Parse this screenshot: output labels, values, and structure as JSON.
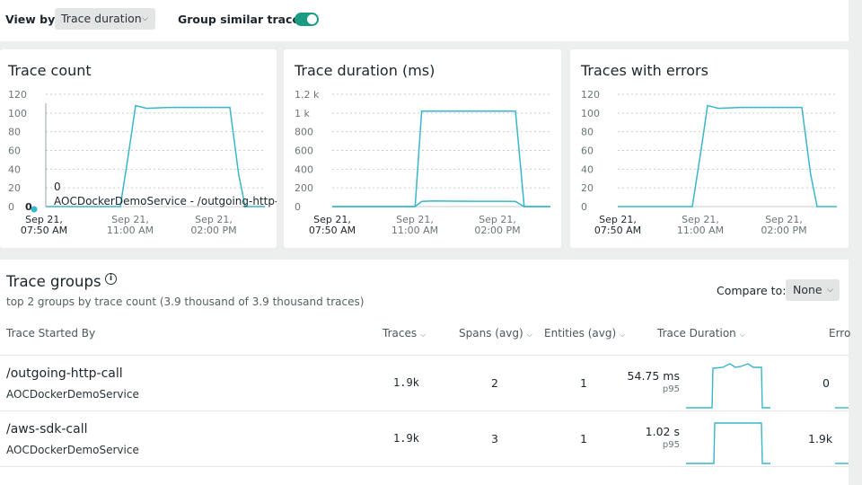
{
  "toolbar": {
    "view_by_label": "View by",
    "view_by_value": "Trace duration",
    "group_similar_label": "Group similar traces",
    "group_similar_on": true,
    "toggle_color": "#1b9c82"
  },
  "charts": [
    {
      "title": "Trace count",
      "yticks": [
        "120",
        "100",
        "80",
        "60",
        "40",
        "20",
        "0"
      ],
      "xticks": [
        [
          "Sep 21,",
          "07:50 AM"
        ],
        [
          "Sep 21,",
          "11:00 AM"
        ],
        [
          "Sep 21,",
          "02:00 PM"
        ]
      ],
      "tooltip_value": "0",
      "tooltip_label": "AOCDockerDemoService - /outgoing-http-call",
      "point_label": "0"
    },
    {
      "title": "Trace duration (ms)",
      "yticks": [
        "1.2 k",
        "1 k",
        "800",
        "600",
        "400",
        "200",
        "0"
      ],
      "xticks": [
        [
          "Sep 21,",
          "07:50 AM"
        ],
        [
          "Sep 21,",
          "11:00 AM"
        ],
        [
          "Sep 21,",
          "02:00 PM"
        ]
      ]
    },
    {
      "title": "Traces with errors",
      "yticks": [
        "120",
        "100",
        "80",
        "60",
        "40",
        "20",
        "0"
      ],
      "xticks": [
        [
          "Sep 21,",
          "07:50 AM"
        ],
        [
          "Sep 21,",
          "11:00 AM"
        ],
        [
          "Sep 21,",
          "02:00 PM"
        ]
      ]
    }
  ],
  "chart_data": [
    {
      "type": "line",
      "title": "Trace count",
      "ylim": [
        0,
        120
      ],
      "x": [
        "07:50",
        "09:00",
        "10:00",
        "10:20",
        "10:30",
        "11:00",
        "11:30",
        "12:00",
        "13:00",
        "14:00",
        "14:20",
        "14:40"
      ],
      "series": [
        {
          "name": "AOCDockerDemoService - /outgoing-http-call",
          "values": [
            0,
            0,
            0,
            60,
            108,
            105,
            106,
            106,
            106,
            106,
            35,
            0
          ]
        }
      ]
    },
    {
      "type": "line",
      "title": "Trace duration (ms)",
      "ylim": [
        0,
        1200
      ],
      "x": [
        "07:50",
        "09:00",
        "10:00",
        "10:20",
        "10:30",
        "11:00",
        "11:30",
        "12:00",
        "13:00",
        "14:00",
        "14:20",
        "14:40"
      ],
      "series": [
        {
          "values": [
            0,
            0,
            0,
            0,
            1020,
            1020,
            1020,
            1020,
            1020,
            1020,
            0,
            0
          ]
        },
        {
          "values": [
            0,
            0,
            0,
            0,
            55,
            60,
            58,
            57,
            57,
            55,
            0,
            0
          ]
        }
      ]
    },
    {
      "type": "line",
      "title": "Traces with errors",
      "ylim": [
        0,
        120
      ],
      "x": [
        "07:50",
        "09:00",
        "10:00",
        "10:20",
        "10:30",
        "11:00",
        "11:30",
        "12:00",
        "13:00",
        "14:00",
        "14:20",
        "14:40"
      ],
      "series": [
        {
          "values": [
            0,
            0,
            0,
            60,
            108,
            105,
            106,
            106,
            106,
            106,
            35,
            0
          ]
        }
      ]
    }
  ],
  "trace_groups": {
    "title": "Trace groups",
    "subtitle": "top 2 groups by trace count (3.9 thousand of 3.9 thousand traces)",
    "compare_label": "Compare to:",
    "compare_value": "None",
    "columns": {
      "started_by": "Trace Started By",
      "traces": "Traces",
      "spans": "Spans (avg)",
      "entities": "Entities (avg)",
      "duration": "Trace Duration",
      "errors": "Erro"
    },
    "rows": [
      {
        "name": "/outgoing-http-call",
        "service": "AOCDockerDemoService",
        "traces": "1.9k",
        "spans": "2",
        "entities": "1",
        "duration": "54.75 ms",
        "duration_stat": "p95",
        "errors": "0"
      },
      {
        "name": "/aws-sdk-call",
        "service": "AOCDockerDemoService",
        "traces": "1.9k",
        "spans": "3",
        "entities": "1",
        "duration": "1.02 s",
        "duration_stat": "p95",
        "errors": "1.9k"
      }
    ]
  },
  "colors": {
    "line": "#39b6c9",
    "accent": "#1b9c82"
  }
}
